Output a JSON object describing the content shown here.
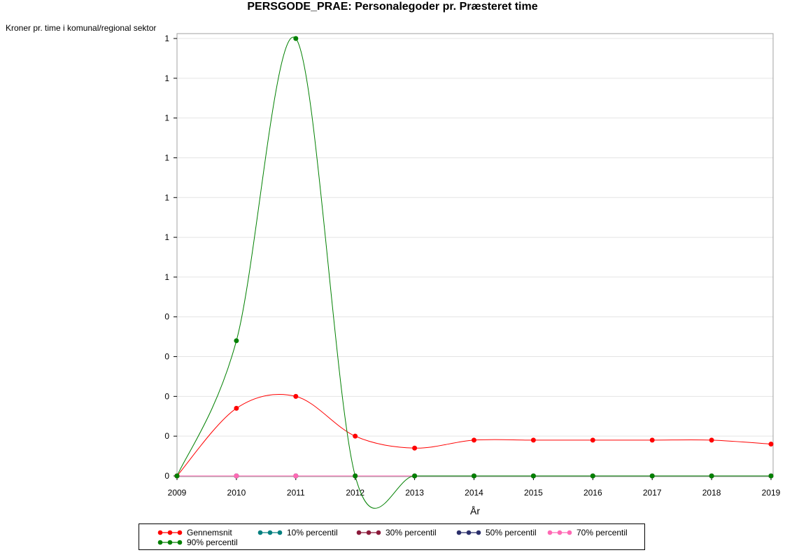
{
  "chart_data": {
    "type": "line",
    "title": "PERSGODE_PRAE: Personalegoder pr. Præsteret time",
    "ylabel": "Kroner pr. time i komunal/regional sektor",
    "xlabel": "År",
    "x": [
      2009,
      2010,
      2011,
      2012,
      2013,
      2014,
      2015,
      2016,
      2017,
      2018,
      2019
    ],
    "xlim": [
      2009,
      2019
    ],
    "ylim": [
      0,
      1.1
    ],
    "y_tick_values": [
      0,
      0.1,
      0.2,
      0.3,
      0.4,
      0.5,
      0.6,
      0.7,
      0.8,
      0.9,
      1.0,
      1.1
    ],
    "y_tick_labels": [
      "0",
      "0",
      "0",
      "0",
      "0",
      "1",
      "1",
      "1",
      "1",
      "1",
      "1",
      "1"
    ],
    "grid": true,
    "legend_position": "bottom",
    "series": [
      {
        "name": "Gennemsnit",
        "color": "#ff0000",
        "values": [
          0,
          0.17,
          0.2,
          0.1,
          0.07,
          0.09,
          0.09,
          0.09,
          0.09,
          0.09,
          0.08
        ]
      },
      {
        "name": "10% percentil",
        "color": "#008080",
        "values": [
          0,
          0,
          0,
          0,
          0,
          0,
          0,
          0,
          0,
          0,
          0
        ]
      },
      {
        "name": "30% percentil",
        "color": "#8b1a3a",
        "values": [
          0,
          0,
          0,
          0,
          0,
          0,
          0,
          0,
          0,
          0,
          0
        ]
      },
      {
        "name": "50% percentil",
        "color": "#2b2f6b",
        "values": [
          0,
          0,
          0,
          0,
          0,
          0,
          0,
          0,
          0,
          0,
          0
        ]
      },
      {
        "name": "70% percentil",
        "color": "#ff69b4",
        "values": [
          0,
          0,
          0,
          0,
          0,
          0,
          0,
          0,
          0,
          0,
          0
        ]
      },
      {
        "name": "90% percentil",
        "color": "#008000",
        "values": [
          0,
          0.34,
          1.1,
          0,
          0,
          0,
          0,
          0,
          0,
          0,
          0
        ]
      }
    ]
  }
}
